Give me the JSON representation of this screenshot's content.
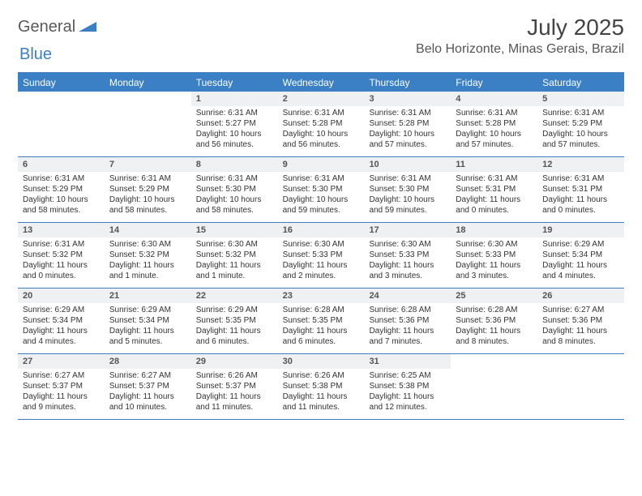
{
  "brand": {
    "text1": "General",
    "text2": "Blue"
  },
  "title": "July 2025",
  "location": "Belo Horizonte, Minas Gerais, Brazil",
  "colors": {
    "accent": "#3b7fc4",
    "header_bg": "#3b7fc4",
    "header_text": "#ffffff",
    "daynum_bg": "#eef0f1",
    "text": "#333333",
    "page_bg": "#ffffff"
  },
  "dow": [
    "Sunday",
    "Monday",
    "Tuesday",
    "Wednesday",
    "Thursday",
    "Friday",
    "Saturday"
  ],
  "weeks": [
    [
      {
        "n": "",
        "sr": "",
        "ss": "",
        "dl": "",
        "empty": true
      },
      {
        "n": "",
        "sr": "",
        "ss": "",
        "dl": "",
        "empty": true
      },
      {
        "n": "1",
        "sr": "Sunrise: 6:31 AM",
        "ss": "Sunset: 5:27 PM",
        "dl": "Daylight: 10 hours and 56 minutes."
      },
      {
        "n": "2",
        "sr": "Sunrise: 6:31 AM",
        "ss": "Sunset: 5:28 PM",
        "dl": "Daylight: 10 hours and 56 minutes."
      },
      {
        "n": "3",
        "sr": "Sunrise: 6:31 AM",
        "ss": "Sunset: 5:28 PM",
        "dl": "Daylight: 10 hours and 57 minutes."
      },
      {
        "n": "4",
        "sr": "Sunrise: 6:31 AM",
        "ss": "Sunset: 5:28 PM",
        "dl": "Daylight: 10 hours and 57 minutes."
      },
      {
        "n": "5",
        "sr": "Sunrise: 6:31 AM",
        "ss": "Sunset: 5:29 PM",
        "dl": "Daylight: 10 hours and 57 minutes."
      }
    ],
    [
      {
        "n": "6",
        "sr": "Sunrise: 6:31 AM",
        "ss": "Sunset: 5:29 PM",
        "dl": "Daylight: 10 hours and 58 minutes."
      },
      {
        "n": "7",
        "sr": "Sunrise: 6:31 AM",
        "ss": "Sunset: 5:29 PM",
        "dl": "Daylight: 10 hours and 58 minutes."
      },
      {
        "n": "8",
        "sr": "Sunrise: 6:31 AM",
        "ss": "Sunset: 5:30 PM",
        "dl": "Daylight: 10 hours and 58 minutes."
      },
      {
        "n": "9",
        "sr": "Sunrise: 6:31 AM",
        "ss": "Sunset: 5:30 PM",
        "dl": "Daylight: 10 hours and 59 minutes."
      },
      {
        "n": "10",
        "sr": "Sunrise: 6:31 AM",
        "ss": "Sunset: 5:30 PM",
        "dl": "Daylight: 10 hours and 59 minutes."
      },
      {
        "n": "11",
        "sr": "Sunrise: 6:31 AM",
        "ss": "Sunset: 5:31 PM",
        "dl": "Daylight: 11 hours and 0 minutes."
      },
      {
        "n": "12",
        "sr": "Sunrise: 6:31 AM",
        "ss": "Sunset: 5:31 PM",
        "dl": "Daylight: 11 hours and 0 minutes."
      }
    ],
    [
      {
        "n": "13",
        "sr": "Sunrise: 6:31 AM",
        "ss": "Sunset: 5:32 PM",
        "dl": "Daylight: 11 hours and 0 minutes."
      },
      {
        "n": "14",
        "sr": "Sunrise: 6:30 AM",
        "ss": "Sunset: 5:32 PM",
        "dl": "Daylight: 11 hours and 1 minute."
      },
      {
        "n": "15",
        "sr": "Sunrise: 6:30 AM",
        "ss": "Sunset: 5:32 PM",
        "dl": "Daylight: 11 hours and 1 minute."
      },
      {
        "n": "16",
        "sr": "Sunrise: 6:30 AM",
        "ss": "Sunset: 5:33 PM",
        "dl": "Daylight: 11 hours and 2 minutes."
      },
      {
        "n": "17",
        "sr": "Sunrise: 6:30 AM",
        "ss": "Sunset: 5:33 PM",
        "dl": "Daylight: 11 hours and 3 minutes."
      },
      {
        "n": "18",
        "sr": "Sunrise: 6:30 AM",
        "ss": "Sunset: 5:33 PM",
        "dl": "Daylight: 11 hours and 3 minutes."
      },
      {
        "n": "19",
        "sr": "Sunrise: 6:29 AM",
        "ss": "Sunset: 5:34 PM",
        "dl": "Daylight: 11 hours and 4 minutes."
      }
    ],
    [
      {
        "n": "20",
        "sr": "Sunrise: 6:29 AM",
        "ss": "Sunset: 5:34 PM",
        "dl": "Daylight: 11 hours and 4 minutes."
      },
      {
        "n": "21",
        "sr": "Sunrise: 6:29 AM",
        "ss": "Sunset: 5:34 PM",
        "dl": "Daylight: 11 hours and 5 minutes."
      },
      {
        "n": "22",
        "sr": "Sunrise: 6:29 AM",
        "ss": "Sunset: 5:35 PM",
        "dl": "Daylight: 11 hours and 6 minutes."
      },
      {
        "n": "23",
        "sr": "Sunrise: 6:28 AM",
        "ss": "Sunset: 5:35 PM",
        "dl": "Daylight: 11 hours and 6 minutes."
      },
      {
        "n": "24",
        "sr": "Sunrise: 6:28 AM",
        "ss": "Sunset: 5:36 PM",
        "dl": "Daylight: 11 hours and 7 minutes."
      },
      {
        "n": "25",
        "sr": "Sunrise: 6:28 AM",
        "ss": "Sunset: 5:36 PM",
        "dl": "Daylight: 11 hours and 8 minutes."
      },
      {
        "n": "26",
        "sr": "Sunrise: 6:27 AM",
        "ss": "Sunset: 5:36 PM",
        "dl": "Daylight: 11 hours and 8 minutes."
      }
    ],
    [
      {
        "n": "27",
        "sr": "Sunrise: 6:27 AM",
        "ss": "Sunset: 5:37 PM",
        "dl": "Daylight: 11 hours and 9 minutes."
      },
      {
        "n": "28",
        "sr": "Sunrise: 6:27 AM",
        "ss": "Sunset: 5:37 PM",
        "dl": "Daylight: 11 hours and 10 minutes."
      },
      {
        "n": "29",
        "sr": "Sunrise: 6:26 AM",
        "ss": "Sunset: 5:37 PM",
        "dl": "Daylight: 11 hours and 11 minutes."
      },
      {
        "n": "30",
        "sr": "Sunrise: 6:26 AM",
        "ss": "Sunset: 5:38 PM",
        "dl": "Daylight: 11 hours and 11 minutes."
      },
      {
        "n": "31",
        "sr": "Sunrise: 6:25 AM",
        "ss": "Sunset: 5:38 PM",
        "dl": "Daylight: 11 hours and 12 minutes."
      },
      {
        "n": "",
        "sr": "",
        "ss": "",
        "dl": "",
        "empty": true
      },
      {
        "n": "",
        "sr": "",
        "ss": "",
        "dl": "",
        "empty": true
      }
    ]
  ]
}
